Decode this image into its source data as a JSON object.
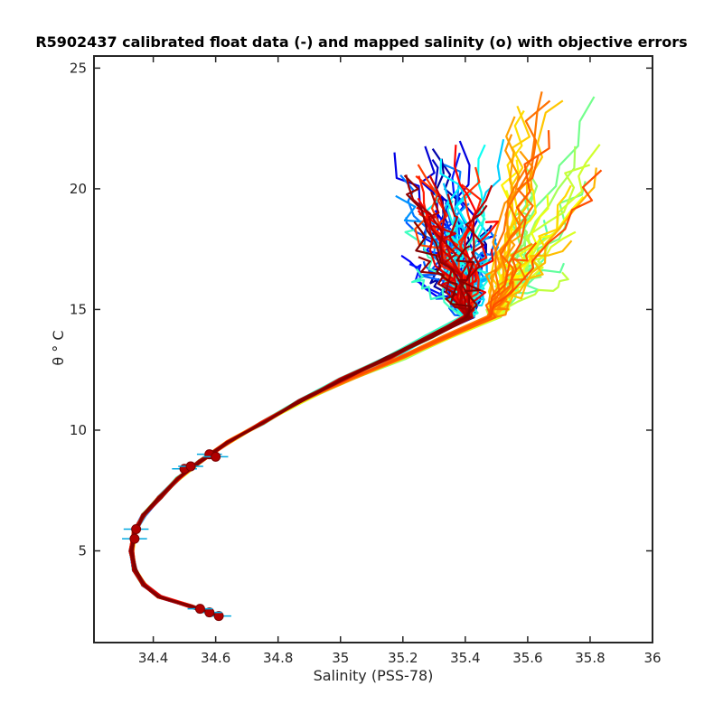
{
  "chart_data": {
    "type": "line",
    "title": "R5902437 calibrated float data (-) and mapped salinity (o) with objective errors",
    "xlabel": "Salinity (PSS-78)",
    "ylabel": "θ ° C",
    "xlim": [
      34.21,
      36.0
    ],
    "ylim": [
      1.2,
      25.5
    ],
    "xticks": [
      34.4,
      34.6,
      34.8,
      35,
      35.2,
      35.4,
      35.6,
      35.8,
      36
    ],
    "xtick_labels": [
      "34.4",
      "34.6",
      "34.8",
      "35",
      "35.2",
      "35.4",
      "35.6",
      "35.8",
      "36"
    ],
    "yticks": [
      5,
      10,
      15,
      20,
      25
    ],
    "ytick_labels": [
      "5",
      "10",
      "15",
      "20",
      "25"
    ],
    "grid": false,
    "colormap": "jet",
    "series_count": 120,
    "description_of_profiles": "Many theta-salinity profiles colored by profile number (blue early to dark red late), sharing a common deep curve and diverging at the warm, shallow end.",
    "base_curve": [
      {
        "s": 34.61,
        "t": 2.3
      },
      {
        "s": 34.52,
        "t": 2.7
      },
      {
        "s": 34.42,
        "t": 3.1
      },
      {
        "s": 34.37,
        "t": 3.6
      },
      {
        "s": 34.34,
        "t": 4.2
      },
      {
        "s": 34.33,
        "t": 5.0
      },
      {
        "s": 34.34,
        "t": 5.8
      },
      {
        "s": 34.37,
        "t": 6.5
      },
      {
        "s": 34.42,
        "t": 7.2
      },
      {
        "s": 34.48,
        "t": 8.0
      },
      {
        "s": 34.55,
        "t": 8.7
      },
      {
        "s": 34.64,
        "t": 9.5
      },
      {
        "s": 34.75,
        "t": 10.3
      },
      {
        "s": 34.87,
        "t": 11.2
      },
      {
        "s": 35.0,
        "t": 12.1
      },
      {
        "s": 35.15,
        "t": 13.0
      },
      {
        "s": 35.28,
        "t": 13.9
      },
      {
        "s": 35.4,
        "t": 14.7
      }
    ],
    "mapped_points": [
      {
        "s": 34.61,
        "t": 2.3
      },
      {
        "s": 34.58,
        "t": 2.45
      },
      {
        "s": 34.55,
        "t": 2.6
      },
      {
        "s": 34.34,
        "t": 5.5
      },
      {
        "s": 34.345,
        "t": 5.9
      },
      {
        "s": 34.5,
        "t": 8.4
      },
      {
        "s": 34.52,
        "t": 8.5
      },
      {
        "s": 34.58,
        "t": 9.0
      },
      {
        "s": 34.6,
        "t": 8.9
      }
    ],
    "error_bar_halfwidth": 0.04
  }
}
